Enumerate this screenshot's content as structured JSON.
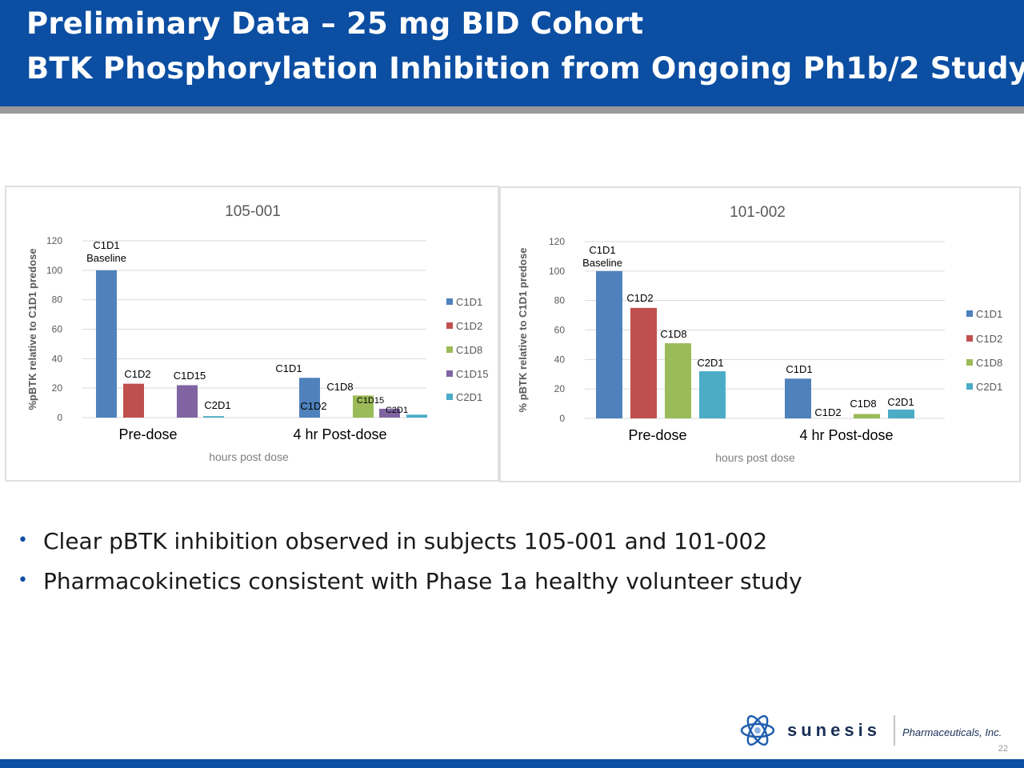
{
  "slide": {
    "title_line1": "Preliminary Data – 25 mg BID Cohort",
    "title_line2": "BTK Phosphorylation Inhibition from Ongoing Ph1b/2 Study",
    "bullets": [
      "Clear pBTK inhibition observed in subjects 105-001 and 101-002",
      "Pharmacokinetics consistent with Phase 1a healthy volunteer study"
    ],
    "company": "sunesis",
    "company_sub": "Pharmaceuticals, Inc.",
    "page_number": "22"
  },
  "colors": {
    "C1D1": "#4f81bd",
    "C1D2": "#c0504d",
    "C1D8": "#9bbb59",
    "C1D15": "#8064a2",
    "C2D1": "#4bacc6",
    "header": "#0b4ea2"
  },
  "chart_data": [
    {
      "type": "bar",
      "title": "105-001",
      "xlabel": "hours post dose",
      "ylabel": "%pBTK relative to C1D1 predose",
      "ylim": [
        0,
        120
      ],
      "yticks": [
        0,
        20,
        40,
        60,
        80,
        100,
        120
      ],
      "categories": [
        "Pre-dose",
        "4 hr Post-dose"
      ],
      "legend_position": "right",
      "series": [
        {
          "name": "C1D1",
          "values": [
            100,
            27
          ]
        },
        {
          "name": "C1D2",
          "values": [
            23,
            0
          ]
        },
        {
          "name": "C1D8",
          "values": [
            null,
            15
          ]
        },
        {
          "name": "C1D15",
          "values": [
            22,
            6
          ]
        },
        {
          "name": "C2D1",
          "values": [
            1,
            2
          ]
        }
      ],
      "data_labels": [
        [
          "C1D1 Baseline",
          "C1D1"
        ],
        [
          "C1D2",
          "C1D2"
        ],
        [
          "",
          "C1D8"
        ],
        [
          "C1D15",
          "C1D15"
        ],
        [
          "C2D1",
          "C2D1"
        ]
      ]
    },
    {
      "type": "bar",
      "title": "101-002",
      "xlabel": "hours post dose",
      "ylabel": "% pBTK relative to C1D1 predose",
      "ylim": [
        0,
        120
      ],
      "yticks": [
        0,
        20,
        40,
        60,
        80,
        100,
        120
      ],
      "categories": [
        "Pre-dose",
        "4 hr Post-dose"
      ],
      "legend_position": "right",
      "series": [
        {
          "name": "C1D1",
          "values": [
            100,
            27
          ]
        },
        {
          "name": "C1D2",
          "values": [
            75,
            0
          ]
        },
        {
          "name": "C1D8",
          "values": [
            51,
            3
          ]
        },
        {
          "name": "C2D1",
          "values": [
            32,
            6
          ]
        }
      ],
      "data_labels": [
        [
          "C1D1 Baseline",
          "C1D1"
        ],
        [
          "C1D2",
          "C1D2"
        ],
        [
          "C1D8",
          "C1D8"
        ],
        [
          "C2D1",
          "C2D1"
        ]
      ]
    }
  ]
}
